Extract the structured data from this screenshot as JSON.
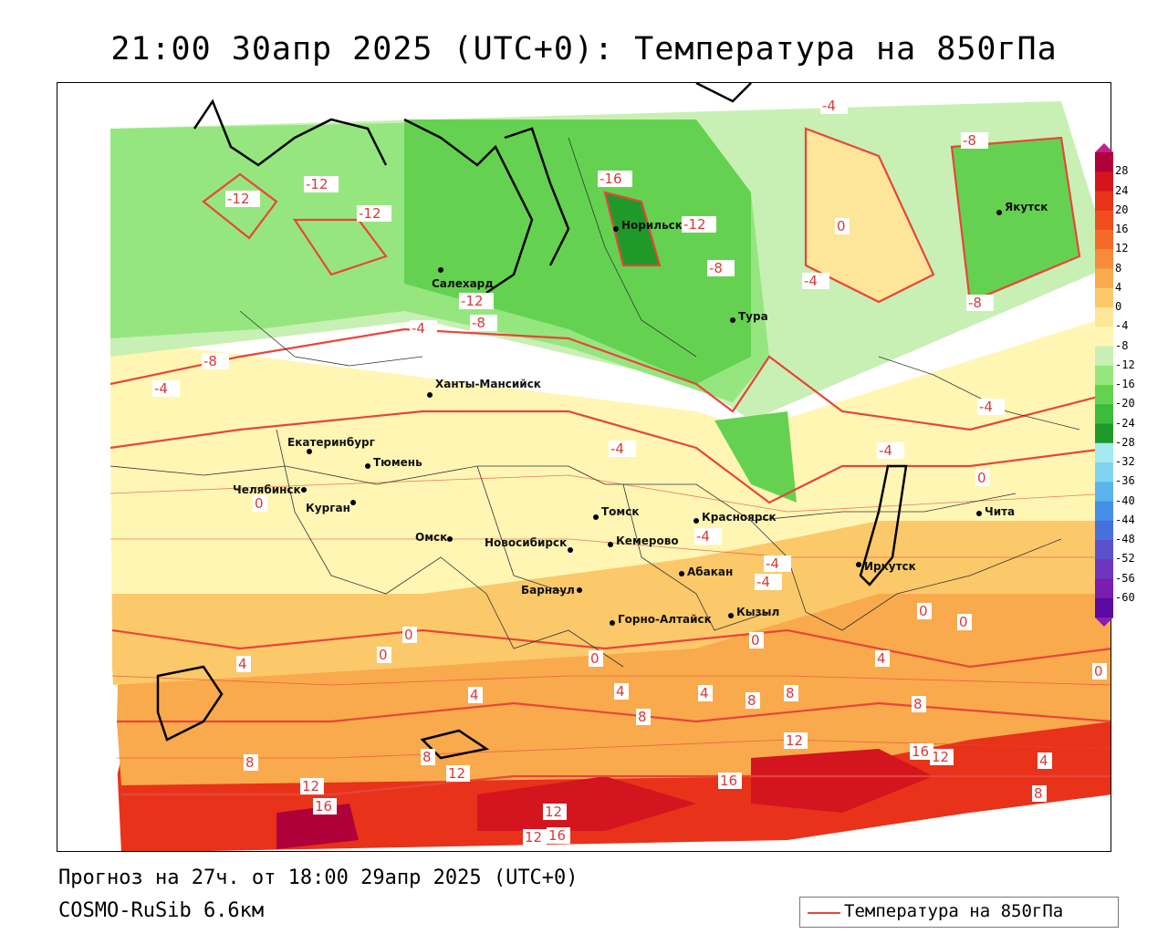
{
  "title": "21:00 30апр 2025 (UTC+0): Температура на 850гПа",
  "footer": {
    "forecast": "Прогноз на 27ч. от 18:00 29апр 2025 (UTC+0)",
    "model": "COSMO-RuSib 6.6км"
  },
  "legend": {
    "label": "Температура на 850гПа",
    "line_color": "#e8453a"
  },
  "colorbar": {
    "labels": [
      "28",
      "24",
      "20",
      "16",
      "12",
      "8",
      "4",
      "0",
      "-4",
      "-8",
      "-12",
      "-16",
      "-20",
      "-24",
      "-28",
      "-32",
      "-36",
      "-40",
      "-44",
      "-48",
      "-52",
      "-56",
      "-60"
    ],
    "colors": [
      "#b0003a",
      "#d4141e",
      "#e8321a",
      "#f04e1e",
      "#f46a2a",
      "#f68c3a",
      "#f8aa4c",
      "#fbc86a",
      "#fde69a",
      "#fff6b4",
      "#c8f0b4",
      "#96e680",
      "#64d250",
      "#3cbc3c",
      "#1f9a2a",
      "#a6eaf0",
      "#80d4f2",
      "#5ab4ee",
      "#4490e8",
      "#4670dc",
      "#5a52cc",
      "#6e36c0",
      "#7a1eb0",
      "#5a0aa0"
    ]
  },
  "cities": [
    {
      "name": "Якутск"
    },
    {
      "name": "Норильск"
    },
    {
      "name": "Салехард"
    },
    {
      "name": "Тура"
    },
    {
      "name": "Ханты-Мансийск"
    },
    {
      "name": "Екатеринбург"
    },
    {
      "name": "Тюмень"
    },
    {
      "name": "Челябинск"
    },
    {
      "name": "Курган"
    },
    {
      "name": "Омск"
    },
    {
      "name": "Новосибирск"
    },
    {
      "name": "Томск"
    },
    {
      "name": "Кемерово"
    },
    {
      "name": "Красноярск"
    },
    {
      "name": "Барнаул"
    },
    {
      "name": "Абакан"
    },
    {
      "name": "Горно-Алтайск"
    },
    {
      "name": "Кызыл"
    },
    {
      "name": "Иркутск"
    },
    {
      "name": "Чита"
    }
  ],
  "isotherm_labels": [
    "-4",
    "-8",
    "-12",
    "-16",
    "0",
    "4",
    "8",
    "12",
    "16"
  ]
}
